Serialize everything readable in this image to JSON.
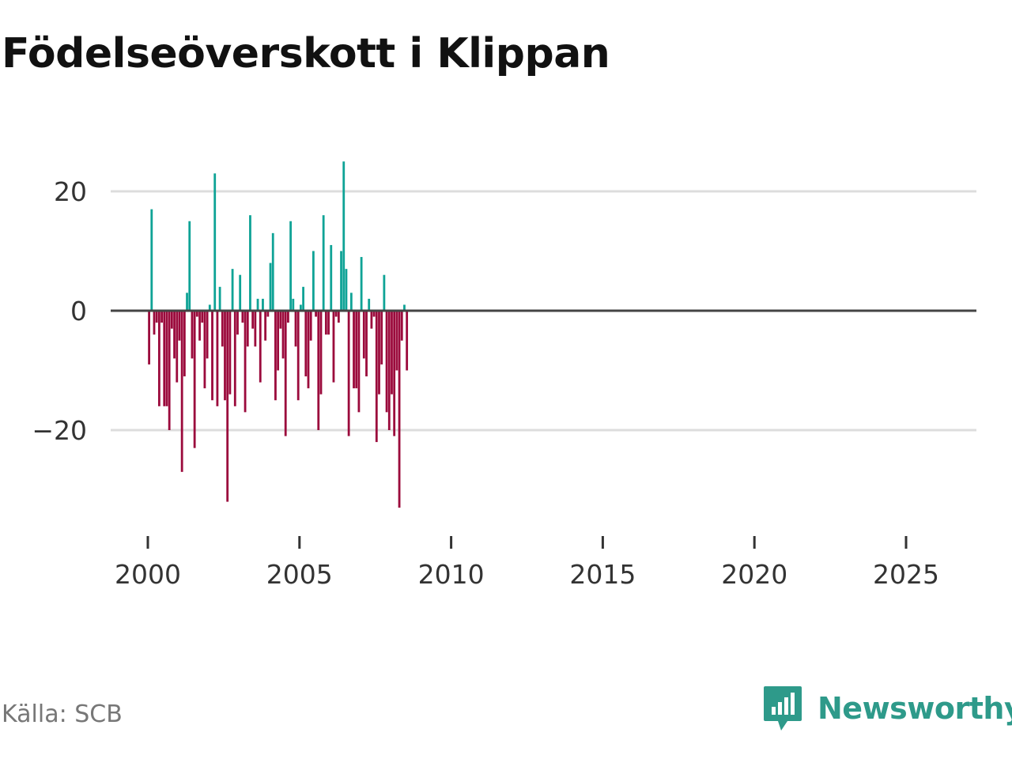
{
  "title": "Födelseöverskott i Klippan",
  "source": "Källa: SCB",
  "brand": "Newsworthy",
  "colors": {
    "positive": "#0fa396",
    "negative": "#9b0a3c",
    "grid": "#dddddd",
    "baseline": "#444444",
    "brand": "#2e9a8a"
  },
  "chart_data": {
    "type": "bar",
    "title": "Födelseöverskott i Klippan",
    "xlabel": "",
    "ylabel": "",
    "x_start": 2000.0,
    "period": "month",
    "xlim": [
      1999.0,
      2027.3
    ],
    "ylim": [
      -36,
      29
    ],
    "yticks": [
      20,
      0,
      -20
    ],
    "ytick_labels": [
      "20",
      "0",
      "−20"
    ],
    "xticks": [
      2000,
      2005,
      2010,
      2015,
      2020,
      2025
    ],
    "xtick_labels": [
      "2000",
      "2005",
      "2010",
      "2015",
      "2020",
      "2025"
    ],
    "values": [
      -9,
      17,
      -4,
      -2,
      -16,
      -2,
      -16,
      -16,
      -20,
      -3,
      -8,
      -12,
      -5,
      -27,
      -11,
      3,
      15,
      -8,
      -23,
      -1,
      -5,
      -2,
      -13,
      -8,
      1,
      -15,
      23,
      -16,
      4,
      -6,
      -15,
      -32,
      -14,
      7,
      -16,
      -4,
      6,
      -2,
      -17,
      -6,
      16,
      -3,
      -6,
      2,
      -12,
      2,
      -5,
      -1,
      8,
      13,
      -15,
      -10,
      -3,
      -8,
      -21,
      -2,
      15,
      2,
      -6,
      -15,
      1,
      4,
      -11,
      -13,
      -5,
      10,
      -1,
      -20,
      -14,
      16,
      -4,
      -4,
      11,
      -12,
      -1,
      -2,
      10,
      25,
      7,
      -21,
      3,
      -13,
      -13,
      -17,
      9,
      -8,
      -11,
      2,
      -3,
      -1,
      -22,
      -14,
      -9,
      6,
      -17,
      -20,
      -14,
      -21,
      -10,
      -33,
      -5,
      1,
      -10
    ]
  }
}
